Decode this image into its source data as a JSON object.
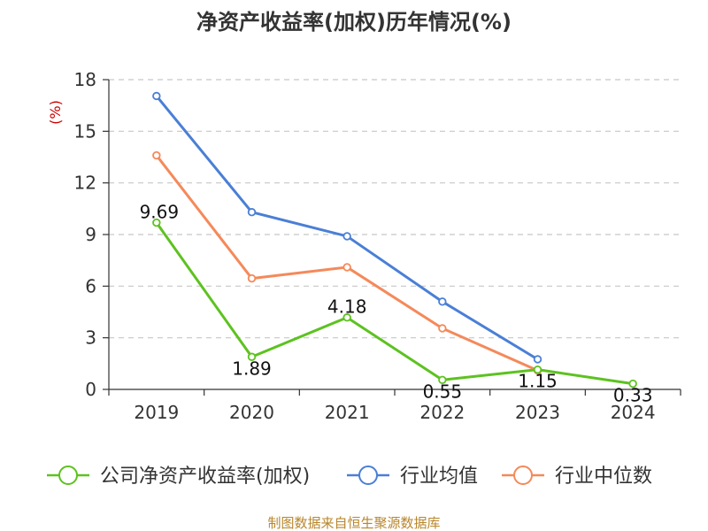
{
  "chart_data": {
    "type": "line",
    "title": "净资产收益率(加权)历年情况(%)",
    "ylabel": "(%)",
    "ylim": [
      0,
      18
    ],
    "yticks": [
      0,
      3,
      6,
      9,
      12,
      15,
      18
    ],
    "x": [
      "2019",
      "2020",
      "2021",
      "2022",
      "2023",
      "2024"
    ],
    "grid": true,
    "legend_position": "bottom",
    "series": [
      {
        "name": "公司净资产收益率(加权)",
        "color": "#5dc220",
        "values": [
          9.69,
          1.89,
          4.18,
          0.55,
          1.15,
          0.33
        ],
        "labels": [
          "9.69",
          "1.89",
          "4.18",
          "0.55",
          "1.15",
          "0.33"
        ]
      },
      {
        "name": "行业均值",
        "color": "#4a7fd6",
        "values": [
          17.05,
          10.3,
          8.9,
          5.1,
          1.75,
          null
        ]
      },
      {
        "name": "行业中位数",
        "color": "#f5895a",
        "values": [
          13.6,
          6.45,
          7.1,
          3.55,
          1.1,
          null
        ]
      }
    ]
  },
  "source": "制图数据来自恒生聚源数据库"
}
